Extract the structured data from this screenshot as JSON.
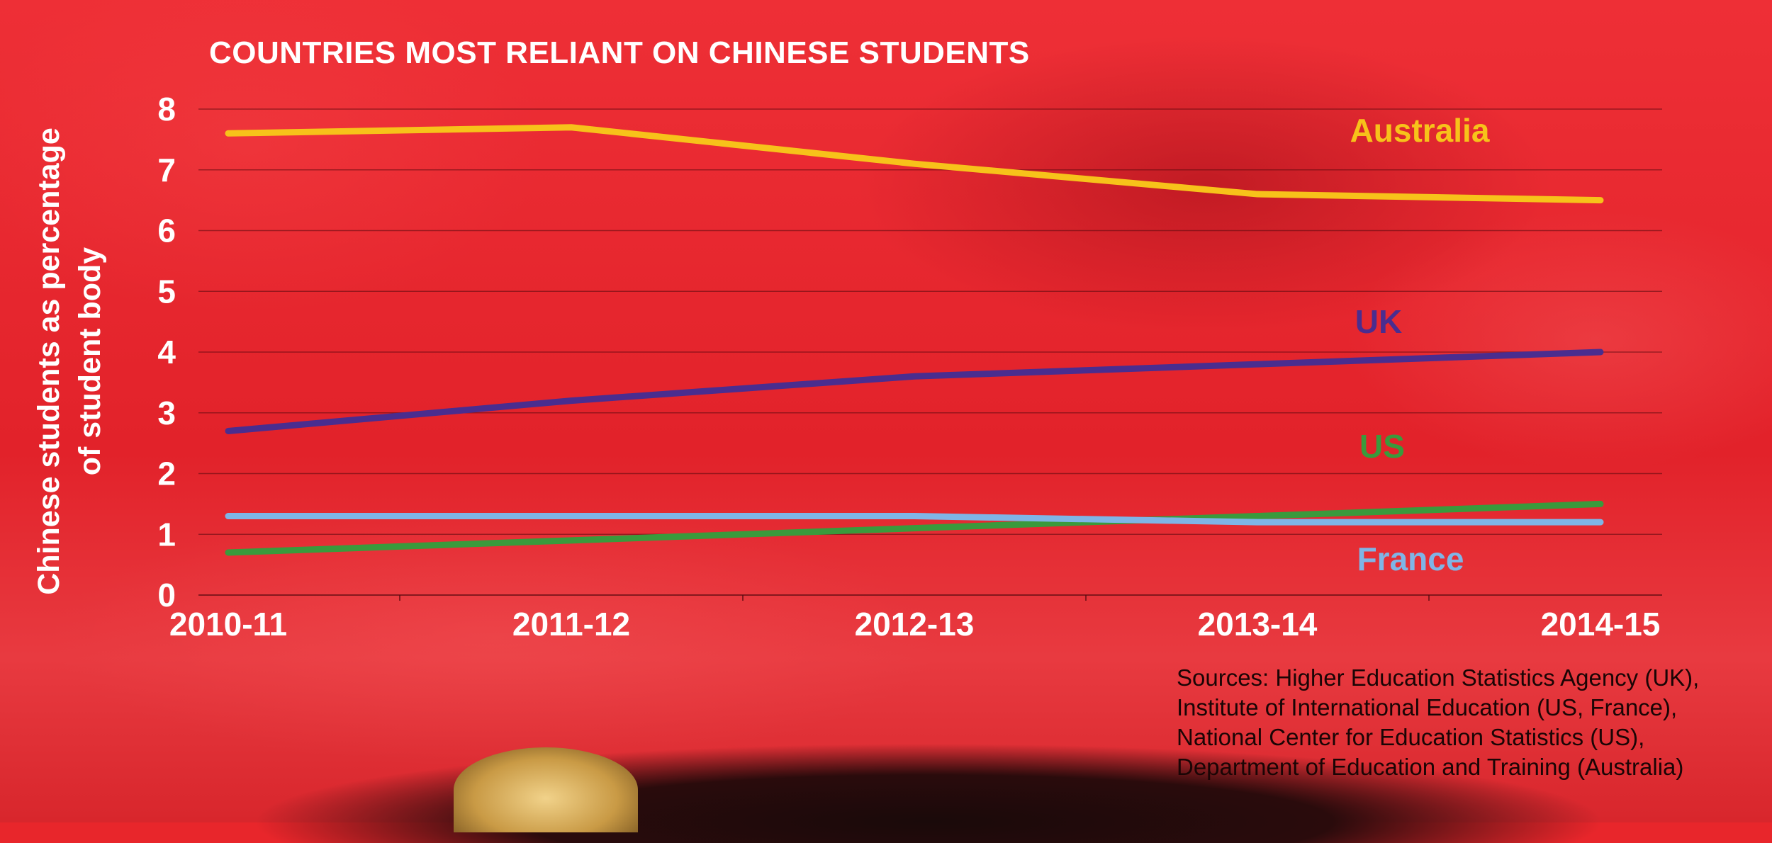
{
  "chart_data": {
    "type": "line",
    "title": "COUNTRIES MOST RELIANT ON CHINESE STUDENTS",
    "ylabel": "Chinese students as percentage\nof student body",
    "xlabel": "",
    "categories": [
      "2010-11",
      "2011-12",
      "2012-13",
      "2013-14",
      "2014-15"
    ],
    "ylim": [
      0,
      8
    ],
    "yticks": [
      0,
      1,
      2,
      3,
      4,
      5,
      6,
      7,
      8
    ],
    "grid": true,
    "series": [
      {
        "name": "Australia",
        "color": "#f7c21a",
        "values": [
          7.6,
          7.7,
          7.1,
          6.6,
          6.5
        ]
      },
      {
        "name": "UK",
        "color": "#4a2d8f",
        "values": [
          2.7,
          3.2,
          3.6,
          3.8,
          4.0
        ]
      },
      {
        "name": "US",
        "color": "#3a9a3c",
        "values": [
          0.7,
          0.9,
          1.1,
          1.3,
          1.5
        ]
      },
      {
        "name": "France",
        "color": "#7fb5e6",
        "values": [
          1.3,
          1.3,
          1.3,
          1.2,
          1.2
        ]
      }
    ]
  },
  "sources": "Sources: Higher Education Statistics Agency (UK),\nInstitute of International Education (US, France),\nNational Center for Education Statistics (US),\nDepartment of Education and Training (Australia)"
}
